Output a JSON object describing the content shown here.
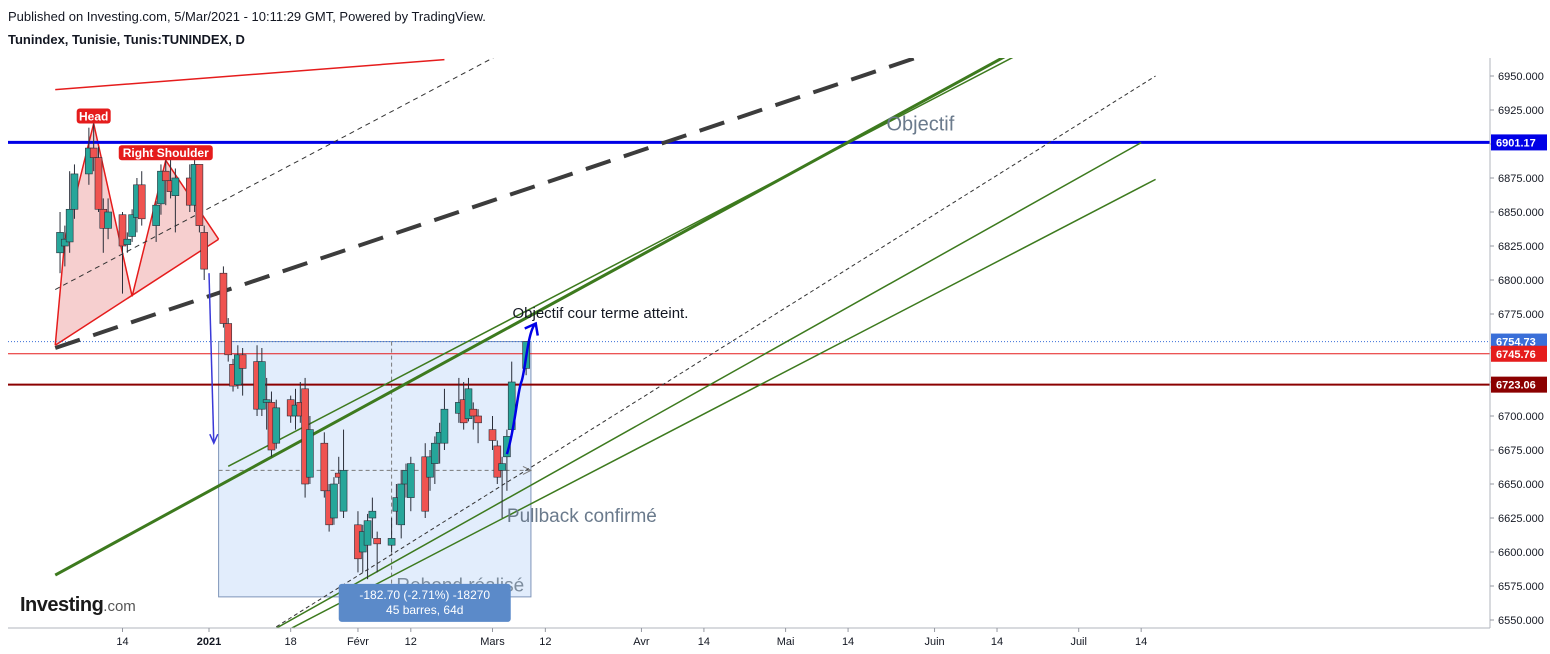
{
  "header": {
    "published": "Published on Investing.com, 5/Mar/2021 - 10:11:29 GMT, Powered by TradingView.",
    "symbol": "Tunindex, Tunisie, Tunis:TUNINDEX, D"
  },
  "brand": {
    "logo_main": "Investing",
    "logo_suffix": ".com"
  },
  "chart_data": {
    "type": "candlestick",
    "title": "Tunindex, Tunisie, Tunis:TUNINDEX, D",
    "ylim": [
      6540,
      6965
    ],
    "y_ticks": [
      6550,
      6575,
      6600,
      6625,
      6650,
      6675,
      6700,
      6725,
      6750,
      6775,
      6800,
      6825,
      6850,
      6875,
      6900,
      6925,
      6950
    ],
    "x_ticks": [
      {
        "date": "2020-12-14",
        "label": "14"
      },
      {
        "date": "2021-01-01",
        "label": "2021"
      },
      {
        "date": "2021-01-18",
        "label": "18"
      },
      {
        "date": "2021-02-01",
        "label": "Févr"
      },
      {
        "date": "2021-02-12",
        "label": "12"
      },
      {
        "date": "2021-03-01",
        "label": "Mars"
      },
      {
        "date": "2021-03-12",
        "label": "12"
      },
      {
        "date": "2021-04-01",
        "label": "Avr"
      },
      {
        "date": "2021-04-14",
        "label": "14"
      },
      {
        "date": "2021-05-01",
        "label": "Mai"
      },
      {
        "date": "2021-05-14",
        "label": "14"
      },
      {
        "date": "2021-06-01",
        "label": "Juin"
      },
      {
        "date": "2021-06-14",
        "label": "14"
      },
      {
        "date": "2021-07-01",
        "label": "Juil"
      },
      {
        "date": "2021-07-14",
        "label": "14"
      }
    ],
    "candles": [
      {
        "date": "2020-12-01",
        "o": 6820,
        "h": 6850,
        "l": 6805,
        "c": 6835
      },
      {
        "date": "2020-12-02",
        "o": 6825,
        "h": 6840,
        "l": 6810,
        "c": 6830
      },
      {
        "date": "2020-12-03",
        "o": 6828,
        "h": 6880,
        "l": 6820,
        "c": 6852
      },
      {
        "date": "2020-12-04",
        "o": 6852,
        "h": 6885,
        "l": 6845,
        "c": 6878
      },
      {
        "date": "2020-12-07",
        "o": 6878,
        "h": 6912,
        "l": 6870,
        "c": 6897
      },
      {
        "date": "2020-12-08",
        "o": 6897,
        "h": 6918,
        "l": 6880,
        "c": 6890
      },
      {
        "date": "2020-12-09",
        "o": 6890,
        "h": 6898,
        "l": 6850,
        "c": 6852
      },
      {
        "date": "2020-12-10",
        "o": 6852,
        "h": 6860,
        "l": 6820,
        "c": 6838
      },
      {
        "date": "2020-12-11",
        "o": 6838,
        "h": 6860,
        "l": 6830,
        "c": 6850
      },
      {
        "date": "2020-12-14",
        "o": 6848,
        "h": 6850,
        "l": 6790,
        "c": 6825
      },
      {
        "date": "2020-12-15",
        "o": 6826,
        "h": 6835,
        "l": 6820,
        "c": 6830
      },
      {
        "date": "2020-12-16",
        "o": 6832,
        "h": 6852,
        "l": 6828,
        "c": 6848
      },
      {
        "date": "2020-12-17",
        "o": 6846,
        "h": 6875,
        "l": 6835,
        "c": 6870
      },
      {
        "date": "2020-12-18",
        "o": 6870,
        "h": 6880,
        "l": 6840,
        "c": 6845
      },
      {
        "date": "2020-12-21",
        "o": 6840,
        "h": 6858,
        "l": 6828,
        "c": 6855
      },
      {
        "date": "2020-12-22",
        "o": 6856,
        "h": 6885,
        "l": 6848,
        "c": 6880
      },
      {
        "date": "2020-12-23",
        "o": 6880,
        "h": 6888,
        "l": 6855,
        "c": 6873
      },
      {
        "date": "2020-12-24",
        "o": 6873,
        "h": 6892,
        "l": 6860,
        "c": 6865
      },
      {
        "date": "2020-12-25",
        "o": 6862,
        "h": 6882,
        "l": 6835,
        "c": 6875
      },
      {
        "date": "2020-12-28",
        "o": 6875,
        "h": 6885,
        "l": 6850,
        "c": 6855
      },
      {
        "date": "2020-12-29",
        "o": 6855,
        "h": 6890,
        "l": 6850,
        "c": 6885
      },
      {
        "date": "2020-12-30",
        "o": 6885,
        "h": 6885,
        "l": 6835,
        "c": 6840
      },
      {
        "date": "2020-12-31",
        "o": 6835,
        "h": 6840,
        "l": 6800,
        "c": 6808
      },
      {
        "date": "2021-01-04",
        "o": 6805,
        "h": 6810,
        "l": 6765,
        "c": 6768
      },
      {
        "date": "2021-01-05",
        "o": 6768,
        "h": 6772,
        "l": 6740,
        "c": 6745
      },
      {
        "date": "2021-01-06",
        "o": 6738,
        "h": 6742,
        "l": 6718,
        "c": 6722
      },
      {
        "date": "2021-01-07",
        "o": 6723,
        "h": 6752,
        "l": 6720,
        "c": 6745
      },
      {
        "date": "2021-01-08",
        "o": 6745,
        "h": 6750,
        "l": 6715,
        "c": 6735
      },
      {
        "date": "2021-01-11",
        "o": 6740,
        "h": 6752,
        "l": 6700,
        "c": 6705
      },
      {
        "date": "2021-01-12",
        "o": 6705,
        "h": 6750,
        "l": 6700,
        "c": 6740
      },
      {
        "date": "2021-01-13",
        "o": 6710,
        "h": 6728,
        "l": 6690,
        "c": 6712
      },
      {
        "date": "2021-01-14",
        "o": 6710,
        "h": 6718,
        "l": 6670,
        "c": 6675
      },
      {
        "date": "2021-01-15",
        "o": 6680,
        "h": 6712,
        "l": 6676,
        "c": 6706
      },
      {
        "date": "2021-01-18",
        "o": 6712,
        "h": 6715,
        "l": 6695,
        "c": 6700
      },
      {
        "date": "2021-01-19",
        "o": 6700,
        "h": 6720,
        "l": 6690,
        "c": 6708
      },
      {
        "date": "2021-01-20",
        "o": 6710,
        "h": 6725,
        "l": 6695,
        "c": 6700
      },
      {
        "date": "2021-01-21",
        "o": 6720,
        "h": 6728,
        "l": 6640,
        "c": 6650
      },
      {
        "date": "2021-01-22",
        "o": 6655,
        "h": 6700,
        "l": 6650,
        "c": 6690
      },
      {
        "date": "2021-01-25",
        "o": 6680,
        "h": 6688,
        "l": 6640,
        "c": 6645
      },
      {
        "date": "2021-01-26",
        "o": 6645,
        "h": 6650,
        "l": 6615,
        "c": 6620
      },
      {
        "date": "2021-01-27",
        "o": 6625,
        "h": 6655,
        "l": 6620,
        "c": 6650
      },
      {
        "date": "2021-01-28",
        "o": 6658,
        "h": 6670,
        "l": 6650,
        "c": 6655
      },
      {
        "date": "2021-01-29",
        "o": 6630,
        "h": 6690,
        "l": 6625,
        "c": 6660
      },
      {
        "date": "2021-02-01",
        "o": 6620,
        "h": 6630,
        "l": 6585,
        "c": 6595
      },
      {
        "date": "2021-02-02",
        "o": 6600,
        "h": 6620,
        "l": 6585,
        "c": 6615
      },
      {
        "date": "2021-02-03",
        "o": 6605,
        "h": 6628,
        "l": 6580,
        "c": 6623
      },
      {
        "date": "2021-02-04",
        "o": 6625,
        "h": 6640,
        "l": 6610,
        "c": 6630
      },
      {
        "date": "2021-02-05",
        "o": 6610,
        "h": 6615,
        "l": 6585,
        "c": 6606
      },
      {
        "date": "2021-02-08",
        "o": 6605,
        "h": 6625,
        "l": 6600,
        "c": 6610
      },
      {
        "date": "2021-02-09",
        "o": 6630,
        "h": 6650,
        "l": 6620,
        "c": 6640
      },
      {
        "date": "2021-02-10",
        "o": 6620,
        "h": 6660,
        "l": 6610,
        "c": 6650
      },
      {
        "date": "2021-02-11",
        "o": 6650,
        "h": 6665,
        "l": 6640,
        "c": 6660
      },
      {
        "date": "2021-02-12",
        "o": 6640,
        "h": 6670,
        "l": 6630,
        "c": 6665
      },
      {
        "date": "2021-02-15",
        "o": 6670,
        "h": 6680,
        "l": 6625,
        "c": 6630
      },
      {
        "date": "2021-02-16",
        "o": 6655,
        "h": 6675,
        "l": 6645,
        "c": 6670
      },
      {
        "date": "2021-02-17",
        "o": 6665,
        "h": 6685,
        "l": 6650,
        "c": 6680
      },
      {
        "date": "2021-02-18",
        "o": 6680,
        "h": 6695,
        "l": 6665,
        "c": 6688
      },
      {
        "date": "2021-02-19",
        "o": 6680,
        "h": 6720,
        "l": 6675,
        "c": 6705
      },
      {
        "date": "2021-02-22",
        "o": 6702,
        "h": 6728,
        "l": 6695,
        "c": 6710
      },
      {
        "date": "2021-02-23",
        "o": 6712,
        "h": 6725,
        "l": 6690,
        "c": 6695
      },
      {
        "date": "2021-02-24",
        "o": 6698,
        "h": 6728,
        "l": 6696,
        "c": 6720
      },
      {
        "date": "2021-02-25",
        "o": 6705,
        "h": 6710,
        "l": 6690,
        "c": 6700
      },
      {
        "date": "2021-02-26",
        "o": 6700,
        "h": 6705,
        "l": 6680,
        "c": 6695
      },
      {
        "date": "2021-03-01",
        "o": 6690,
        "h": 6700,
        "l": 6675,
        "c": 6682
      },
      {
        "date": "2021-03-02",
        "o": 6678,
        "h": 6682,
        "l": 6650,
        "c": 6655
      },
      {
        "date": "2021-03-03",
        "o": 6660,
        "h": 6670,
        "l": 6625,
        "c": 6665
      },
      {
        "date": "2021-03-04",
        "o": 6670,
        "h": 6690,
        "l": 6645,
        "c": 6685
      },
      {
        "date": "2021-03-05",
        "o": 6690,
        "h": 6740,
        "l": 6685,
        "c": 6725
      },
      {
        "date": "2021-03-08",
        "o": 6735,
        "h": 6755,
        "l": 6730,
        "c": 6754.73
      }
    ],
    "price_labels": [
      {
        "value": 6901.17,
        "label": "6901.17",
        "color": "#0000e6"
      },
      {
        "value": 6754.73,
        "label": "6754.73",
        "color": "#3a6fd8"
      },
      {
        "value": 6745.76,
        "label": "6745.76",
        "color": "#e51c1c"
      },
      {
        "value": 6723.06,
        "label": "6723.06",
        "color": "#8b0000"
      }
    ],
    "annotations": {
      "head": "Head",
      "right_shoulder": "Right Shoulder",
      "objectif": "Objectif",
      "short_term": "Objectif cour terme atteint.",
      "pullback": "Pullback confirmé",
      "rebound": "Rebond réalisé",
      "measure_line1": "-182.70 (-2.71%) -18270",
      "measure_line2": "45 barres, 64d"
    },
    "colors": {
      "up": "#26a69a",
      "down": "#ef5350",
      "channel": "#3d7a1e",
      "support": "#0000e6",
      "neckline_fill": "#f4c7c7"
    }
  }
}
